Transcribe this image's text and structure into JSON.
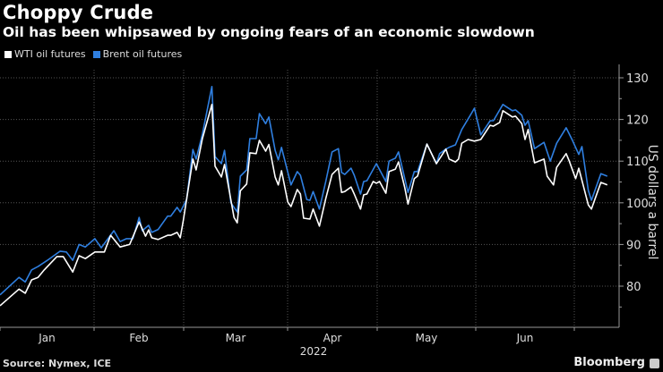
{
  "header": {
    "title": "Choppy Crude",
    "subtitle": "Oil has been whipsawed by ongoing fears of an economic slowdown"
  },
  "footer": {
    "source": "Source: Nymex, ICE",
    "brand": "Bloomberg"
  },
  "chart_data": {
    "type": "line",
    "title": "Choppy Crude",
    "subtitle": "Oil has been whipsawed by ongoing fears of an economic slowdown",
    "xlabel": "2022",
    "ylabel": "US dollars a barrel",
    "x_tick_labels": [
      "Jan",
      "Feb",
      "Mar",
      "Apr",
      "May",
      "Jun"
    ],
    "y_ticks": [
      80,
      90,
      100,
      110,
      120,
      130
    ],
    "ylim": [
      70,
      132
    ],
    "y_axis_side": "right",
    "grid": true,
    "legend_position": "top-left",
    "background": "#000000",
    "series": [
      {
        "name": "WTI oil futures",
        "color": "#ffffff",
        "points": [
          [
            "2022-01-01",
            75.3
          ],
          [
            "2022-01-07",
            79.3
          ],
          [
            "2022-01-09",
            78.3
          ],
          [
            "2022-01-11",
            81.5
          ],
          [
            "2022-01-13",
            82.1
          ],
          [
            "2022-01-15",
            83.9
          ],
          [
            "2022-01-19",
            87.1
          ],
          [
            "2022-01-21",
            87.1
          ],
          [
            "2022-01-24",
            83.4
          ],
          [
            "2022-01-26",
            87.3
          ],
          [
            "2022-01-28",
            86.6
          ],
          [
            "2022-01-31",
            88.2
          ],
          [
            "2022-02-03",
            88.2
          ],
          [
            "2022-02-05",
            92.2
          ],
          [
            "2022-02-08",
            89.4
          ],
          [
            "2022-02-11",
            90.0
          ],
          [
            "2022-02-14",
            95.4
          ],
          [
            "2022-02-16",
            92.0
          ],
          [
            "2022-02-17",
            93.5
          ],
          [
            "2022-02-18",
            91.6
          ],
          [
            "2022-02-20",
            91.2
          ],
          [
            "2022-02-23",
            92.2
          ],
          [
            "2022-02-24",
            92.2
          ],
          [
            "2022-02-26",
            92.9
          ],
          [
            "2022-02-27",
            91.6
          ],
          [
            "2022-02-28",
            95.9
          ],
          [
            "2022-03-03",
            110.5
          ],
          [
            "2022-03-04",
            107.9
          ],
          [
            "2022-03-06",
            115.4
          ],
          [
            "2022-03-09",
            123.6
          ],
          [
            "2022-03-10",
            108.8
          ],
          [
            "2022-03-12",
            106.2
          ],
          [
            "2022-03-13",
            109.2
          ],
          [
            "2022-03-16",
            96.5
          ],
          [
            "2022-03-17",
            95.2
          ],
          [
            "2022-03-18",
            102.9
          ],
          [
            "2022-03-20",
            104.5
          ],
          [
            "2022-03-21",
            112.0
          ],
          [
            "2022-03-23",
            111.8
          ],
          [
            "2022-03-24",
            115.0
          ],
          [
            "2022-03-26",
            112.4
          ],
          [
            "2022-03-27",
            114.0
          ],
          [
            "2022-03-29",
            106.2
          ],
          [
            "2022-03-30",
            104.3
          ],
          [
            "2022-03-31",
            107.7
          ],
          [
            "2022-04-02",
            100.2
          ],
          [
            "2022-04-03",
            99.1
          ],
          [
            "2022-04-05",
            103.2
          ],
          [
            "2022-04-06",
            102.1
          ],
          [
            "2022-04-07",
            96.3
          ],
          [
            "2022-04-09",
            96.1
          ],
          [
            "2022-04-10",
            98.5
          ],
          [
            "2022-04-12",
            94.4
          ],
          [
            "2022-04-14",
            101.0
          ],
          [
            "2022-04-16",
            106.8
          ],
          [
            "2022-04-18",
            108.3
          ],
          [
            "2022-04-19",
            102.5
          ],
          [
            "2022-04-20",
            102.7
          ],
          [
            "2022-04-22",
            103.8
          ],
          [
            "2022-04-23",
            102.1
          ],
          [
            "2022-04-25",
            98.5
          ],
          [
            "2022-04-26",
            101.9
          ],
          [
            "2022-04-27",
            102.1
          ],
          [
            "2022-04-29",
            105.1
          ],
          [
            "2022-04-30",
            104.7
          ],
          [
            "2022-05-01",
            105.1
          ],
          [
            "2022-05-03",
            102.3
          ],
          [
            "2022-05-04",
            107.5
          ],
          [
            "2022-05-06",
            108.1
          ],
          [
            "2022-05-07",
            109.8
          ],
          [
            "2022-05-09",
            103.6
          ],
          [
            "2022-05-10",
            99.7
          ],
          [
            "2022-05-12",
            105.8
          ],
          [
            "2022-05-13",
            106.4
          ],
          [
            "2022-05-16",
            114.1
          ],
          [
            "2022-05-19",
            109.4
          ],
          [
            "2022-05-22",
            112.9
          ],
          [
            "2022-05-23",
            110.5
          ],
          [
            "2022-05-25",
            109.8
          ],
          [
            "2022-05-26",
            110.5
          ],
          [
            "2022-05-27",
            114.3
          ],
          [
            "2022-05-29",
            115.2
          ],
          [
            "2022-05-31",
            114.8
          ],
          [
            "2022-06-02",
            115.2
          ],
          [
            "2022-06-05",
            118.6
          ],
          [
            "2022-06-06",
            118.4
          ],
          [
            "2022-06-08",
            119.3
          ],
          [
            "2022-06-09",
            122.1
          ],
          [
            "2022-06-12",
            120.6
          ],
          [
            "2022-06-13",
            120.8
          ],
          [
            "2022-06-15",
            119.0
          ],
          [
            "2022-06-16",
            115.2
          ],
          [
            "2022-06-17",
            117.6
          ],
          [
            "2022-06-19",
            109.6
          ],
          [
            "2022-06-22",
            110.5
          ],
          [
            "2022-06-23",
            106.4
          ],
          [
            "2022-06-25",
            104.3
          ],
          [
            "2022-06-26",
            108.5
          ],
          [
            "2022-06-29",
            111.8
          ],
          [
            "2022-06-30",
            110.0
          ],
          [
            "2022-07-02",
            105.8
          ],
          [
            "2022-07-03",
            108.3
          ],
          [
            "2022-07-06",
            99.5
          ],
          [
            "2022-07-07",
            98.5
          ],
          [
            "2022-07-10",
            104.9
          ],
          [
            "2022-07-12",
            104.3
          ]
        ]
      },
      {
        "name": "Brent oil futures",
        "color": "#2f7fe0",
        "points": [
          [
            "2022-01-01",
            77.9
          ],
          [
            "2022-01-07",
            82.1
          ],
          [
            "2022-01-09",
            81.0
          ],
          [
            "2022-01-11",
            83.9
          ],
          [
            "2022-01-13",
            84.7
          ],
          [
            "2022-01-16",
            86.2
          ],
          [
            "2022-01-20",
            88.4
          ],
          [
            "2022-01-22",
            88.2
          ],
          [
            "2022-01-24",
            86.2
          ],
          [
            "2022-01-26",
            90.0
          ],
          [
            "2022-01-28",
            89.4
          ],
          [
            "2022-01-31",
            91.4
          ],
          [
            "2022-02-02",
            89.2
          ],
          [
            "2022-02-06",
            93.3
          ],
          [
            "2022-02-08",
            90.7
          ],
          [
            "2022-02-10",
            91.4
          ],
          [
            "2022-02-12",
            91.4
          ],
          [
            "2022-02-14",
            96.5
          ],
          [
            "2022-02-15",
            93.3
          ],
          [
            "2022-02-17",
            94.6
          ],
          [
            "2022-02-18",
            92.9
          ],
          [
            "2022-02-20",
            93.6
          ],
          [
            "2022-02-23",
            96.8
          ],
          [
            "2022-02-24",
            96.8
          ],
          [
            "2022-02-26",
            98.9
          ],
          [
            "2022-02-27",
            97.8
          ],
          [
            "2022-03-01",
            100.8
          ],
          [
            "2022-03-03",
            112.8
          ],
          [
            "2022-03-04",
            110.5
          ],
          [
            "2022-03-06",
            116.5
          ],
          [
            "2022-03-09",
            127.9
          ],
          [
            "2022-03-10",
            111.1
          ],
          [
            "2022-03-12",
            109.4
          ],
          [
            "2022-03-13",
            112.6
          ],
          [
            "2022-03-15",
            100.0
          ],
          [
            "2022-03-17",
            97.8
          ],
          [
            "2022-03-18",
            106.4
          ],
          [
            "2022-03-20",
            107.9
          ],
          [
            "2022-03-21",
            115.4
          ],
          [
            "2022-03-23",
            115.4
          ],
          [
            "2022-03-24",
            121.4
          ],
          [
            "2022-03-26",
            119.0
          ],
          [
            "2022-03-27",
            120.6
          ],
          [
            "2022-03-29",
            112.6
          ],
          [
            "2022-03-30",
            110.3
          ],
          [
            "2022-03-31",
            113.3
          ],
          [
            "2022-04-03",
            104.3
          ],
          [
            "2022-04-05",
            107.5
          ],
          [
            "2022-04-06",
            106.6
          ],
          [
            "2022-04-08",
            100.8
          ],
          [
            "2022-04-09",
            100.6
          ],
          [
            "2022-04-10",
            102.7
          ],
          [
            "2022-04-12",
            98.5
          ],
          [
            "2022-04-14",
            105.1
          ],
          [
            "2022-04-16",
            112.2
          ],
          [
            "2022-04-18",
            113.0
          ],
          [
            "2022-04-19",
            107.3
          ],
          [
            "2022-04-20",
            106.8
          ],
          [
            "2022-04-22",
            108.3
          ],
          [
            "2022-04-23",
            106.6
          ],
          [
            "2022-04-25",
            102.1
          ],
          [
            "2022-04-26",
            105.1
          ],
          [
            "2022-04-27",
            105.3
          ],
          [
            "2022-04-30",
            109.4
          ],
          [
            "2022-05-03",
            105.1
          ],
          [
            "2022-05-04",
            110.0
          ],
          [
            "2022-05-06",
            110.7
          ],
          [
            "2022-05-07",
            112.2
          ],
          [
            "2022-05-10",
            102.5
          ],
          [
            "2022-05-12",
            107.5
          ],
          [
            "2022-05-13",
            107.5
          ],
          [
            "2022-05-16",
            114.1
          ],
          [
            "2022-05-19",
            109.4
          ],
          [
            "2022-05-20",
            111.8
          ],
          [
            "2022-05-22",
            112.9
          ],
          [
            "2022-05-23",
            113.3
          ],
          [
            "2022-05-25",
            113.9
          ],
          [
            "2022-05-27",
            117.6
          ],
          [
            "2022-05-30",
            121.4
          ],
          [
            "2022-05-31",
            122.7
          ],
          [
            "2022-06-02",
            116.3
          ],
          [
            "2022-06-05",
            119.7
          ],
          [
            "2022-06-06",
            119.7
          ],
          [
            "2022-06-09",
            123.6
          ],
          [
            "2022-06-10",
            123.1
          ],
          [
            "2022-06-12",
            122.1
          ],
          [
            "2022-06-13",
            122.3
          ],
          [
            "2022-06-15",
            121.0
          ],
          [
            "2022-06-16",
            118.6
          ],
          [
            "2022-06-17",
            119.7
          ],
          [
            "2022-06-19",
            113.0
          ],
          [
            "2022-06-22",
            114.5
          ],
          [
            "2022-06-24",
            110.0
          ],
          [
            "2022-06-26",
            114.3
          ],
          [
            "2022-06-29",
            118.0
          ],
          [
            "2022-07-01",
            115.0
          ],
          [
            "2022-07-03",
            111.6
          ],
          [
            "2022-07-04",
            113.5
          ],
          [
            "2022-07-06",
            103.0
          ],
          [
            "2022-07-07",
            100.6
          ],
          [
            "2022-07-10",
            107.0
          ],
          [
            "2022-07-12",
            106.4
          ]
        ]
      }
    ]
  }
}
